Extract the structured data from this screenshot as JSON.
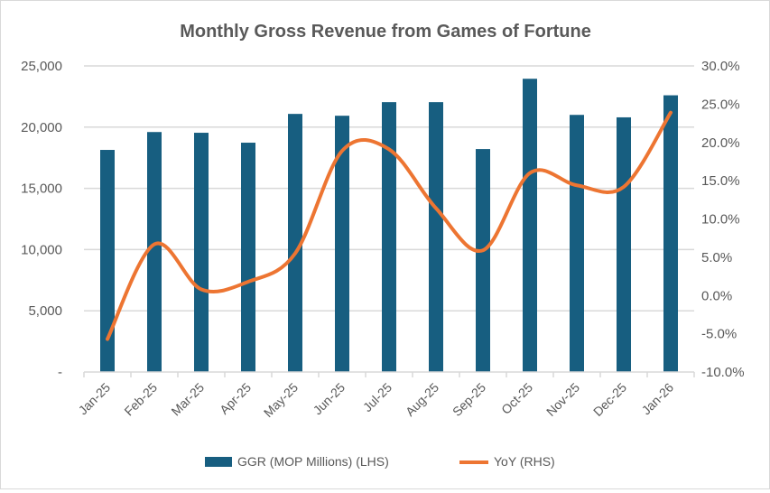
{
  "chart_data": {
    "type": "bar+line",
    "title": "Monthly Gross Revenue from Games of Fortune",
    "categories": [
      "Jan-25",
      "Feb-25",
      "Mar-25",
      "Apr-25",
      "May-25",
      "Jun-25",
      "Jul-25",
      "Aug-25",
      "Sep-25",
      "Oct-25",
      "Nov-25",
      "Dec-25",
      "Jan-26"
    ],
    "series": [
      {
        "name": "GGR (MOP Millions) (LHS)",
        "type": "bar",
        "axis": "left",
        "color": "#175E80",
        "values": [
          18140,
          19600,
          19540,
          18730,
          21080,
          20930,
          22040,
          22040,
          18210,
          23950,
          21000,
          20800,
          22600
        ]
      },
      {
        "name": "YoY (RHS)",
        "type": "line",
        "axis": "right",
        "smooth": true,
        "color": "#ED7532",
        "values": [
          -5.7,
          6.7,
          0.8,
          1.8,
          5.5,
          18.9,
          19.1,
          11.4,
          5.9,
          16.0,
          14.4,
          14.2,
          23.9
        ]
      }
    ],
    "left_axis": {
      "ylim": [
        0,
        25000
      ],
      "ticks": [
        0,
        5000,
        10000,
        15000,
        20000,
        25000
      ],
      "tick_labels": [
        "-",
        "5,000",
        "10,000",
        "15,000",
        "20,000",
        "25,000"
      ]
    },
    "right_axis": {
      "ylim": [
        -10,
        30
      ],
      "ticks": [
        -10,
        -5,
        0,
        5,
        10,
        15,
        20,
        25,
        30
      ],
      "tick_labels": [
        "-10.0%",
        "-5.0%",
        "0.0%",
        "5.0%",
        "10.0%",
        "15.0%",
        "20.0%",
        "25.0%",
        "30.0%"
      ]
    },
    "grid": true,
    "legend": "bottom"
  }
}
